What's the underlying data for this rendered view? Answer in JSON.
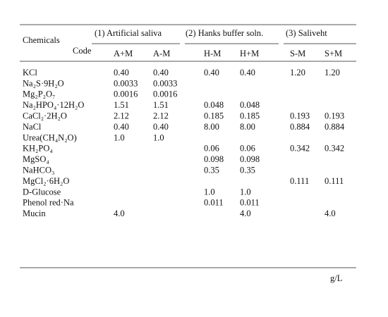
{
  "table": {
    "header": {
      "chemicals": "Chemicals",
      "groups": [
        "(1) Artificial saliva",
        "(2) Hanks buffer soln.",
        "(3) Saliveht"
      ],
      "code": "Code",
      "codes": [
        "A+M",
        "A-M",
        "H-M",
        "H+M",
        "S-M",
        "S+M"
      ]
    },
    "rows": [
      {
        "chemical": "KCl",
        "values": [
          "0.40",
          "0.40",
          "0.40",
          "0.40",
          "1.20",
          "1.20"
        ]
      },
      {
        "chemical": "Na₂S·9H₂O",
        "values": [
          "0.0033",
          "0.0033",
          null,
          null,
          null,
          null
        ]
      },
      {
        "chemical": "Mg₂P₂O₇",
        "values": [
          "0.0016",
          "0.0016",
          null,
          null,
          null,
          null
        ]
      },
      {
        "chemical": "Na₂HPO₄·12H₂O",
        "values": [
          "1.51",
          "1.51",
          "0.048",
          "0.048",
          null,
          null
        ]
      },
      {
        "chemical": "CaCl₂·2H₂O",
        "values": [
          "2.12",
          "2.12",
          "0.185",
          "0.185",
          "0.193",
          "0.193"
        ]
      },
      {
        "chemical": "NaCl",
        "values": [
          "0.40",
          "0.40",
          "8.00",
          "8.00",
          "0.884",
          "0.884"
        ]
      },
      {
        "chemical": "Urea(CH₄N₂O)",
        "values": [
          "1.0",
          "1.0",
          null,
          null,
          null,
          null
        ]
      },
      {
        "chemical": "KH₂PO₄",
        "values": [
          null,
          null,
          "0.06",
          "0.06",
          "0.342",
          "0.342"
        ]
      },
      {
        "chemical": "MgSO₄",
        "values": [
          null,
          null,
          "0.098",
          "0.098",
          null,
          null
        ]
      },
      {
        "chemical": "NaHCO₃",
        "values": [
          null,
          null,
          "0.35",
          "0.35",
          null,
          null
        ]
      },
      {
        "chemical": "MgCl₂·6H₂O",
        "values": [
          null,
          null,
          null,
          null,
          "0.111",
          "0.111"
        ]
      },
      {
        "chemical": "D-Glucose",
        "values": [
          null,
          null,
          "1.0",
          "1.0",
          null,
          null
        ]
      },
      {
        "chemical": "Phenol red·Na",
        "values": [
          null,
          null,
          "0.011",
          "0.011",
          null,
          null
        ]
      },
      {
        "chemical": "Mucin",
        "values": [
          "4.0",
          null,
          null,
          "4.0",
          null,
          "4.0"
        ]
      }
    ],
    "unit": "g/L"
  }
}
